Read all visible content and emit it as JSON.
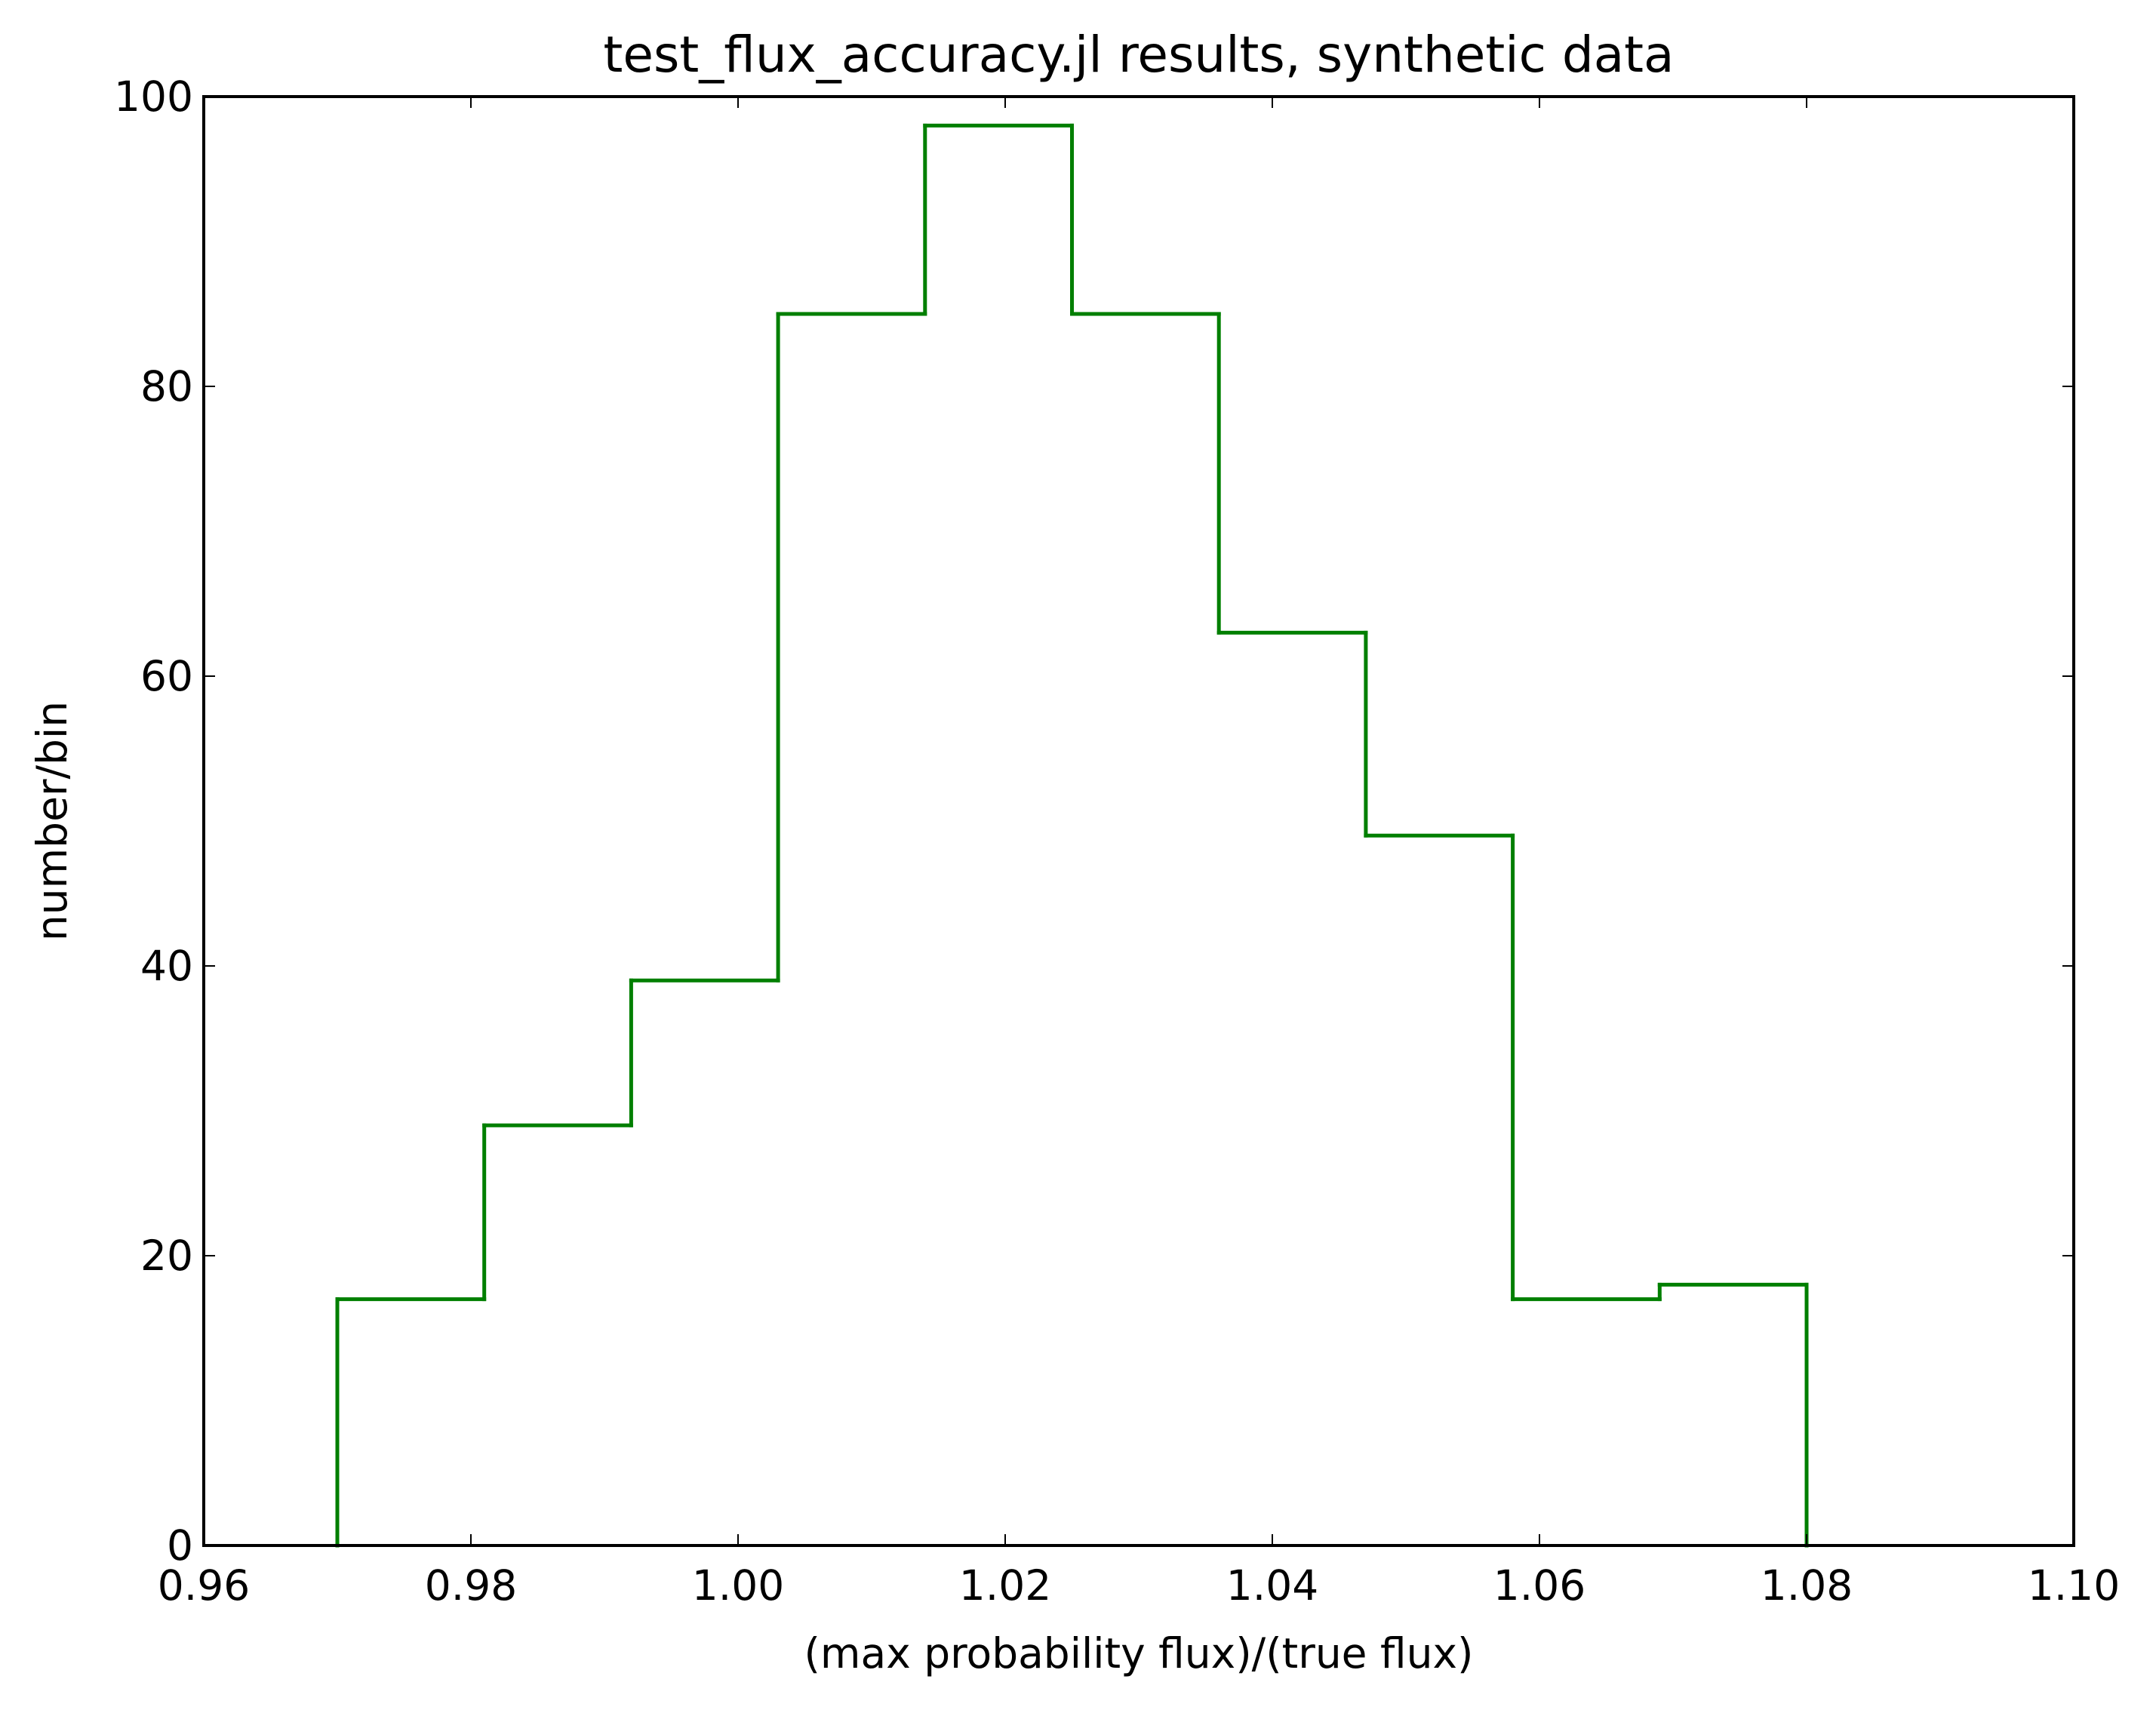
{
  "chart_data": {
    "type": "histogram",
    "title": "test_flux_accuracy.jl results, synthetic data",
    "xlabel": "(max probability flux)/(true flux)",
    "ylabel": "number/bin",
    "bins": [
      0.97,
      0.981,
      0.992,
      1.003,
      1.014,
      1.025,
      1.036,
      1.047,
      1.058,
      1.069,
      1.08
    ],
    "values": [
      17,
      29,
      39,
      85,
      98,
      85,
      63,
      49,
      17,
      18
    ],
    "color": "#007f00",
    "histtype": "step",
    "xlim": [
      0.96,
      1.1
    ],
    "xticks": [
      0.96,
      0.98,
      {
        "value": 1.0,
        "label": "1.00"
      },
      1.02,
      1.04,
      1.06,
      1.08,
      {
        "value": 1.1,
        "label": "1.10"
      }
    ],
    "ylim": [
      0,
      100
    ],
    "yticks": [
      0,
      20,
      40,
      60,
      80,
      100
    ],
    "grid": false
  }
}
